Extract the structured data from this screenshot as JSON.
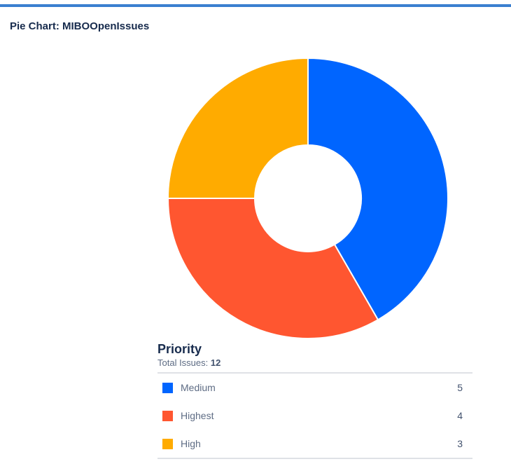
{
  "header": {
    "title": "Pie Chart: MIBOOpenIssues"
  },
  "legend": {
    "title": "Priority",
    "total_label": "Total Issues:",
    "total_value": "12"
  },
  "chart_data": {
    "type": "pie",
    "donut": true,
    "title": "Pie Chart: MIBOOpenIssues",
    "legend_title": "Priority",
    "total": 12,
    "legend_position": "bottom",
    "categories": [
      "Medium",
      "Highest",
      "High"
    ],
    "values": [
      5,
      4,
      3
    ],
    "colors": [
      "#0065ff",
      "#ff5630",
      "#ffab00"
    ]
  }
}
